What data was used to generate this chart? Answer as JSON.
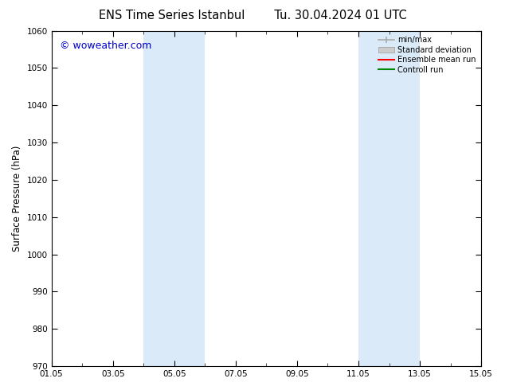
{
  "title_left": "ENS Time Series Istanbul",
  "title_right": "Tu. 30.04.2024 01 UTC",
  "ylabel": "Surface Pressure (hPa)",
  "ylim": [
    970,
    1060
  ],
  "yticks": [
    970,
    980,
    990,
    1000,
    1010,
    1020,
    1030,
    1040,
    1050,
    1060
  ],
  "xlim_start": 0,
  "xlim_end": 14,
  "xtick_positions": [
    0,
    2,
    4,
    6,
    8,
    10,
    12,
    14
  ],
  "xtick_labels": [
    "01.05",
    "03.05",
    "05.05",
    "07.05",
    "09.05",
    "11.05",
    "13.05",
    "15.05"
  ],
  "shaded_bands": [
    {
      "xmin": 3.0,
      "xmax": 5.0,
      "color": "#daeaf8",
      "alpha": 1.0
    },
    {
      "xmin": 10.0,
      "xmax": 12.0,
      "color": "#daeaf8",
      "alpha": 1.0
    }
  ],
  "watermark_text": "© woweather.com",
  "watermark_color": "#0000cc",
  "watermark_fontsize": 9,
  "legend_entries": [
    {
      "label": "min/max",
      "color": "#aaaaaa",
      "lw": 1.2,
      "type": "line_with_cap"
    },
    {
      "label": "Standard deviation",
      "color": "#cccccc",
      "lw": 8,
      "type": "box"
    },
    {
      "label": "Ensemble mean run",
      "color": "#ff0000",
      "lw": 1.5,
      "type": "line"
    },
    {
      "label": "Controll run",
      "color": "#008800",
      "lw": 1.5,
      "type": "line"
    }
  ],
  "bg_color": "#ffffff",
  "tick_fontsize": 7.5,
  "axis_fontsize": 8.5,
  "title_fontsize": 10.5
}
